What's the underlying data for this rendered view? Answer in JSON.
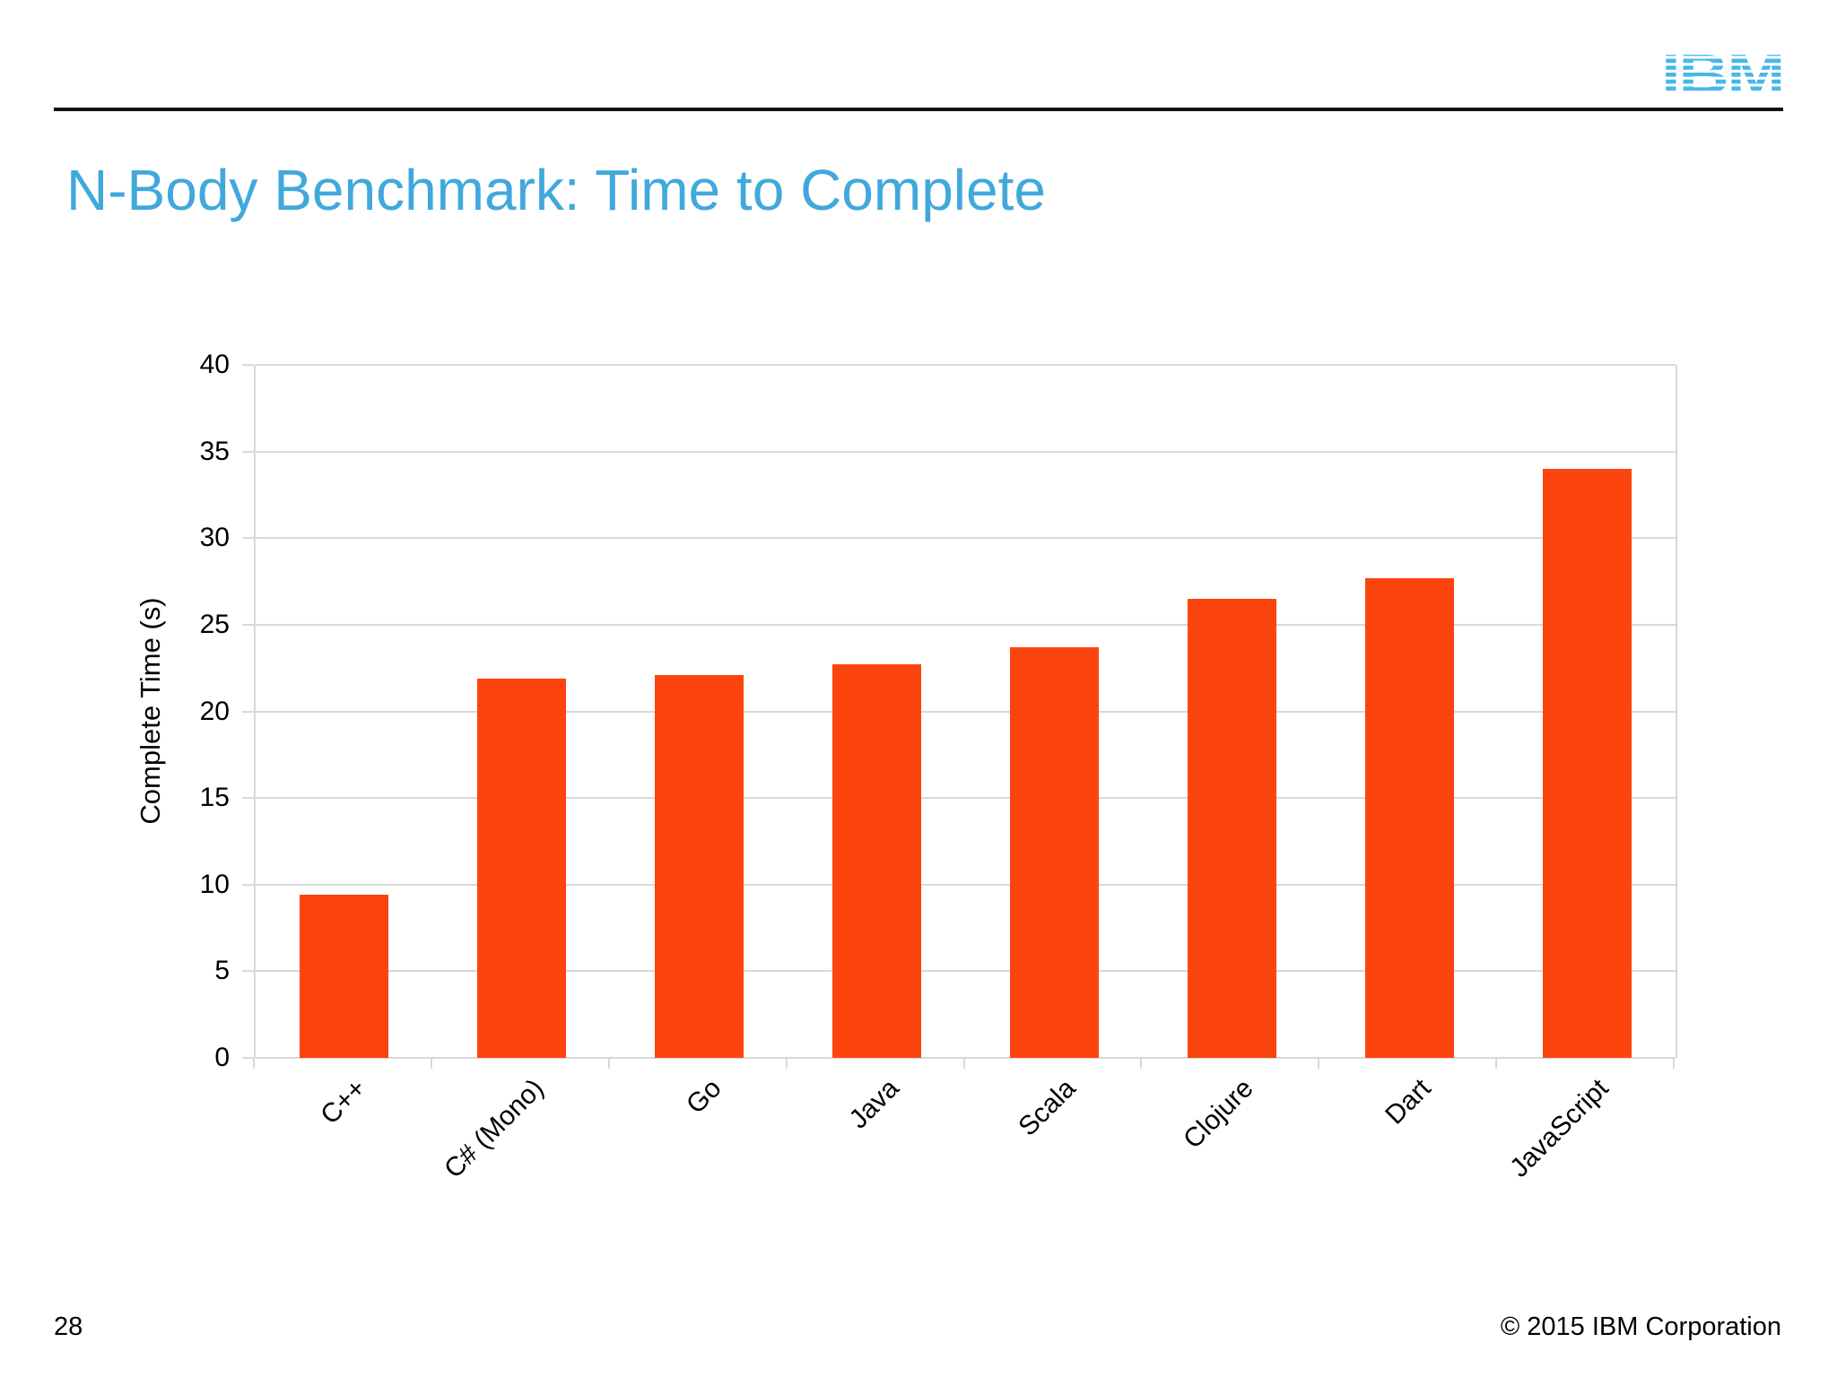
{
  "slide": {
    "title": "N-Body Benchmark: Time to Complete",
    "title_color": "#41a8dc"
  },
  "logo": {
    "text": "IBM",
    "color": "#44b8e8"
  },
  "chart_data": {
    "type": "bar",
    "title": "N-Body Benchmark: Time to Complete",
    "categories": [
      "C++",
      "C# (Mono)",
      "Go",
      "Java",
      "Scala",
      "Clojure",
      "Dart",
      "JavaScript"
    ],
    "values": [
      9.4,
      21.9,
      22.1,
      22.7,
      23.7,
      26.5,
      27.7,
      34.0
    ],
    "xlabel": "",
    "ylabel": "Complete Time (s)",
    "ylim": [
      0,
      40
    ],
    "ytick_step": 5,
    "bar_color": "#fc440e",
    "grid": true,
    "gridline_color": "#d9d9d9",
    "legend": "none"
  },
  "footer": {
    "page_number": "28",
    "copyright": "© 2015 IBM Corporation"
  }
}
